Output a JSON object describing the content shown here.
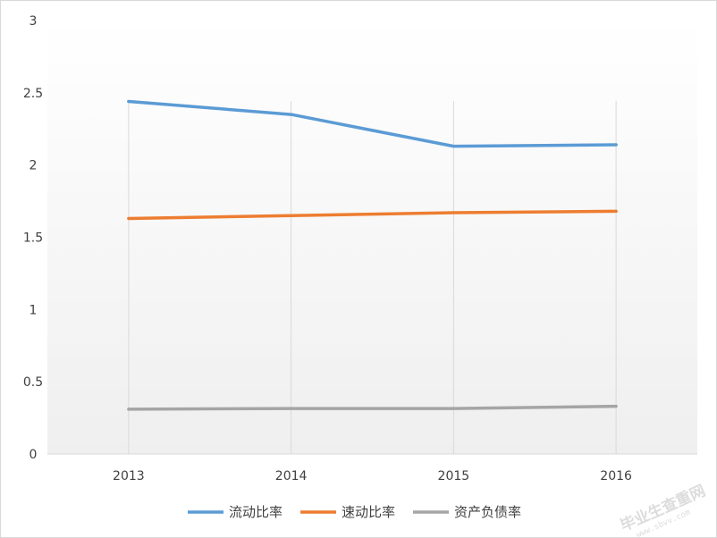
{
  "chart_data": {
    "type": "line",
    "categories": [
      "2013",
      "2014",
      "2015",
      "2016"
    ],
    "series": [
      {
        "name": "流动比率",
        "values": [
          2.44,
          2.35,
          2.13,
          2.14
        ],
        "color": "#5b9bd5"
      },
      {
        "name": "速动比率",
        "values": [
          1.63,
          1.65,
          1.67,
          1.68
        ],
        "color": "#ed7d31"
      },
      {
        "name": "资产负债率",
        "values": [
          0.31,
          0.315,
          0.315,
          0.33
        ],
        "color": "#a5a5a5"
      }
    ],
    "ylim": [
      0,
      3
    ],
    "yticks": [
      "0",
      "0.5",
      "1",
      "1.5",
      "2",
      "2.5",
      "3"
    ],
    "grid": "vertical",
    "legend": "bottom-center",
    "background_gradient": [
      "#ffffff",
      "#efefef"
    ]
  },
  "watermark": {
    "text": "毕业生查重网",
    "subtext": "www.sbvv.com"
  }
}
